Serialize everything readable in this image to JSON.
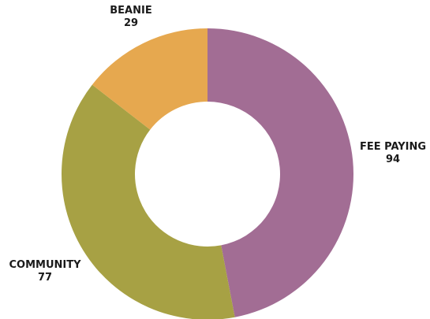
{
  "chart_data": {
    "type": "pie",
    "donut": true,
    "title": "",
    "slices": [
      {
        "label": "FEE PAYING",
        "value": 94,
        "color": "#a26d94"
      },
      {
        "label": "COMMUNITY",
        "value": 77,
        "color": "#a7a144"
      },
      {
        "label": "BEANIE",
        "value": 29,
        "color": "#e6a84f"
      }
    ],
    "legend": "none"
  }
}
